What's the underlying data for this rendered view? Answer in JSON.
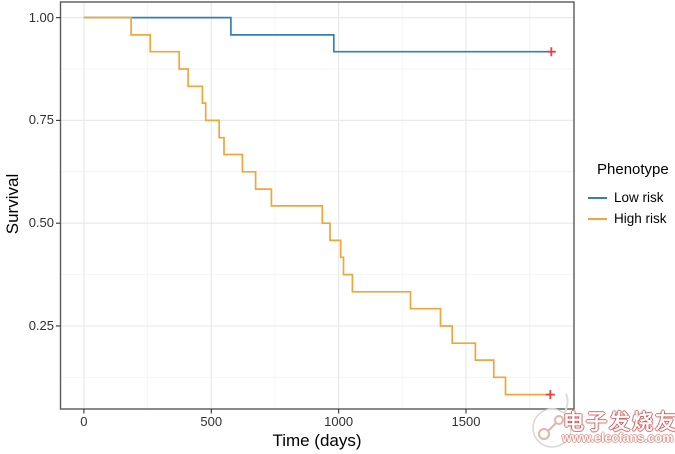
{
  "chart_data": {
    "type": "line",
    "subtype": "kaplan-meier-step-curves",
    "title": "",
    "xlabel": "Time (days)",
    "ylabel": "Survival",
    "xlim": [
      -92,
      1924
    ],
    "ylim": [
      0.048,
      1.038
    ],
    "grid": true,
    "x_ticks": [
      {
        "value": 0,
        "label": "0"
      },
      {
        "value": 500,
        "label": "500"
      },
      {
        "value": 1000,
        "label": "1000"
      },
      {
        "value": 1500,
        "label": "1500"
      }
    ],
    "y_ticks": [
      {
        "value": 0.25,
        "label": "0.25"
      },
      {
        "value": 0.5,
        "label": "0.50"
      },
      {
        "value": 0.75,
        "label": "0.75"
      },
      {
        "value": 1.0,
        "label": "1.00"
      }
    ],
    "x_minor_gridlines": [
      250,
      750,
      1250,
      1750
    ],
    "y_minor_gridlines": [
      0.125,
      0.375,
      0.625,
      0.875
    ],
    "legend": {
      "title": "Phenotype",
      "position": "right"
    },
    "series": [
      {
        "name": "Low risk",
        "color": "#3380b6",
        "steps": [
          [
            0,
            1.0
          ],
          [
            577,
            0.958
          ],
          [
            981,
            0.917
          ]
        ],
        "censored": [
          [
            1835,
            0.917
          ]
        ]
      },
      {
        "name": "High risk",
        "color": "#efa63a",
        "steps": [
          [
            0,
            1.0
          ],
          [
            185,
            0.958
          ],
          [
            260,
            0.917
          ],
          [
            374,
            0.875
          ],
          [
            409,
            0.833
          ],
          [
            465,
            0.792
          ],
          [
            478,
            0.75
          ],
          [
            531,
            0.708
          ],
          [
            550,
            0.667
          ],
          [
            622,
            0.625
          ],
          [
            674,
            0.583
          ],
          [
            736,
            0.542
          ],
          [
            936,
            0.5
          ],
          [
            966,
            0.458
          ],
          [
            1008,
            0.417
          ],
          [
            1019,
            0.375
          ],
          [
            1054,
            0.333
          ],
          [
            1282,
            0.292
          ],
          [
            1400,
            0.25
          ],
          [
            1446,
            0.208
          ],
          [
            1537,
            0.167
          ],
          [
            1609,
            0.125
          ],
          [
            1655,
            0.083
          ]
        ],
        "censored": [
          [
            1831,
            0.083
          ]
        ]
      }
    ],
    "censor_marker": {
      "glyph": "+",
      "color": "#e8403a"
    },
    "style": {
      "panel_background": "#ffffff",
      "panel_border": "#595959",
      "grid_major": "#e9e9e9",
      "grid_minor": "#f4f4f4",
      "tick_color": "#333333"
    }
  },
  "watermark": {
    "brand_cn": "电子发烧友",
    "url": "www.elecfans.com"
  }
}
